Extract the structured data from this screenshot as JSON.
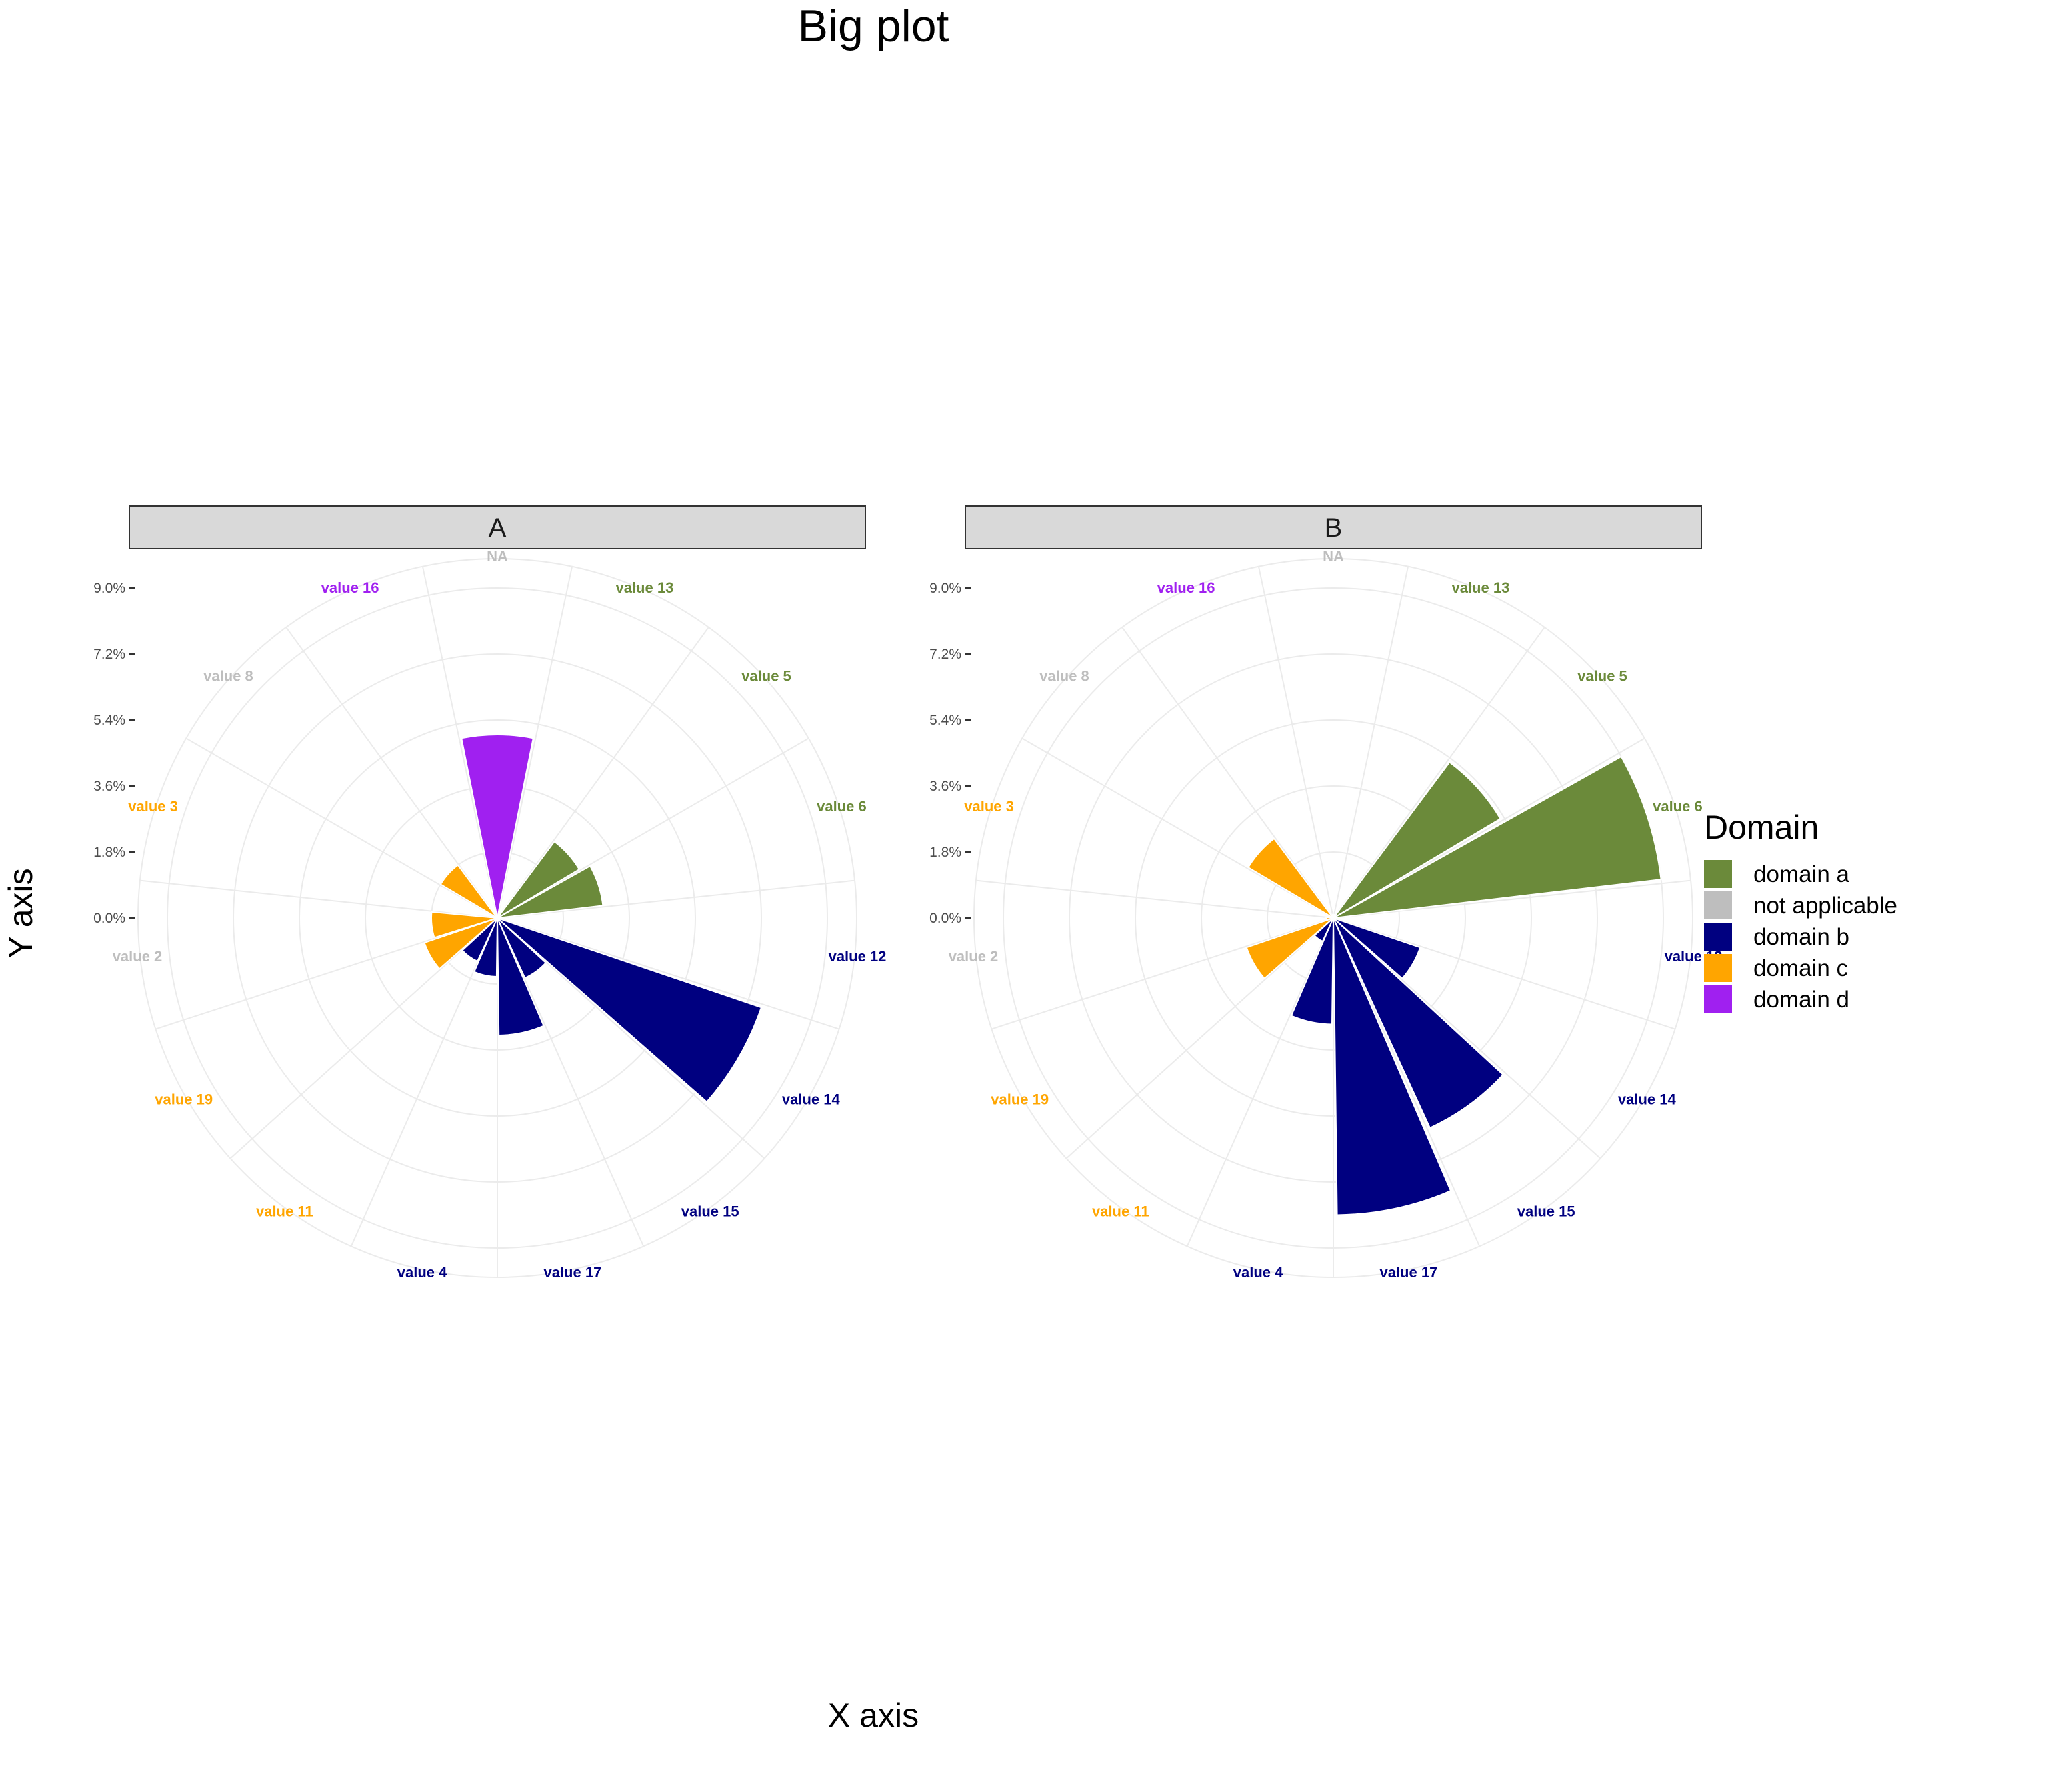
{
  "title": "Big plot",
  "xlabel": "X axis",
  "ylabel": "Y axis",
  "legend": {
    "title": "Domain",
    "items": [
      {
        "label": "domain a",
        "color": "#6B8A3A"
      },
      {
        "label": "not applicable",
        "color": "#BEBEBE"
      },
      {
        "label": "domain b",
        "color": "#000080"
      },
      {
        "label": "domain c",
        "color": "#FFA500"
      },
      {
        "label": "domain d",
        "color": "#A020F0"
      }
    ]
  },
  "chart_data": {
    "type": "bar",
    "coord": "polar",
    "y_tick_labels": [
      "0.0%",
      "1.8%",
      "3.6%",
      "5.4%",
      "7.2%",
      "9.0%"
    ],
    "ylim": [
      0,
      9.0
    ],
    "grid": true,
    "legend_position": "right",
    "categories": [
      "NA",
      "value 13",
      "value 5",
      "value 6",
      "value 12",
      "value 14",
      "value 15",
      "value 17",
      "value 4",
      "value 11",
      "value 19",
      "value 2",
      "value 3",
      "value 8",
      "value 16"
    ],
    "category_domains": [
      "not applicable",
      "domain a",
      "domain a",
      "domain a",
      "domain b",
      "domain b",
      "domain b",
      "domain b",
      "domain b",
      "domain c",
      "domain c",
      "not applicable",
      "domain c",
      "not applicable",
      "domain d"
    ],
    "panels": [
      {
        "facet": "A",
        "values": [
          0,
          2.6,
          2.9,
          0,
          7.6,
          1.8,
          3.2,
          1.6,
          1.3,
          2.1,
          1.8,
          0,
          1.8,
          0,
          5.0
        ]
      },
      {
        "facet": "B",
        "values": [
          0,
          5.3,
          9.0,
          0,
          2.5,
          6.3,
          8.1,
          2.9,
          0.7,
          2.5,
          0.2,
          0,
          2.7,
          0,
          0.1
        ]
      }
    ]
  }
}
